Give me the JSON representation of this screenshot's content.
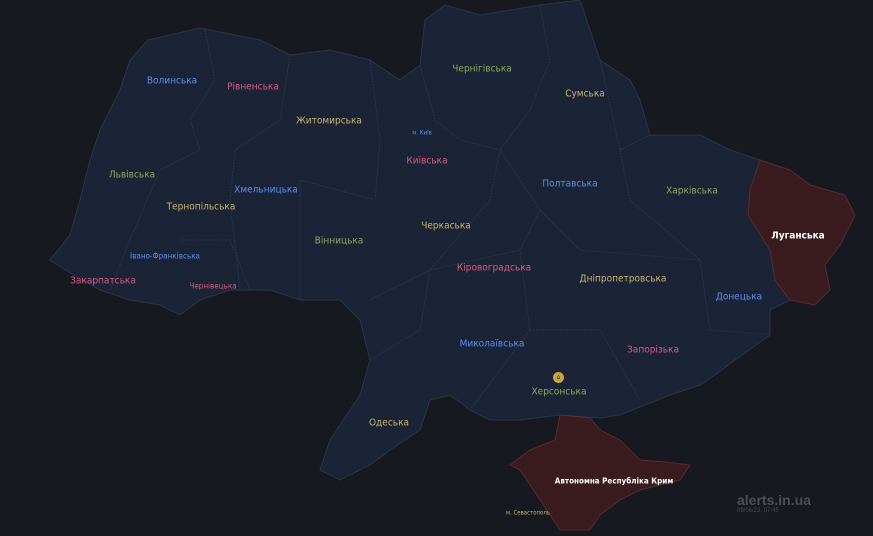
{
  "colors": {
    "background": "#16191f",
    "land": "#1b2437",
    "border": "#2c3548",
    "alert": "#3a1c20",
    "blue": "#5b8def",
    "pink": "#d65a82",
    "green": "#88a860",
    "khaki": "#c9b56a"
  },
  "regions": [
    {
      "name": "Волинська",
      "color": "blue",
      "alert": false
    },
    {
      "name": "Рівненська",
      "color": "pink",
      "alert": false
    },
    {
      "name": "Житомирська",
      "color": "khaki",
      "alert": false
    },
    {
      "name": "Чернігівська",
      "color": "green",
      "alert": false
    },
    {
      "name": "Сумська",
      "color": "khaki",
      "alert": false
    },
    {
      "name": "м. Київ",
      "color": "blue",
      "alert": false
    },
    {
      "name": "Київська",
      "color": "pink",
      "alert": false
    },
    {
      "name": "Львівська",
      "color": "green",
      "alert": false
    },
    {
      "name": "Тернопільська",
      "color": "khaki",
      "alert": false
    },
    {
      "name": "Хмельницька",
      "color": "blue",
      "alert": false
    },
    {
      "name": "Вінницька",
      "color": "green",
      "alert": false
    },
    {
      "name": "Черкаська",
      "color": "khaki",
      "alert": false
    },
    {
      "name": "Полтавська",
      "color": "blue",
      "alert": false
    },
    {
      "name": "Харківська",
      "color": "green",
      "alert": false
    },
    {
      "name": "Луганська",
      "color": "white",
      "alert": true
    },
    {
      "name": "Івано-Франківська",
      "color": "blue",
      "alert": false
    },
    {
      "name": "Закарпатська",
      "color": "pink",
      "alert": false
    },
    {
      "name": "Чернівецька",
      "color": "pink",
      "alert": false
    },
    {
      "name": "Кіровоградська",
      "color": "pink",
      "alert": false
    },
    {
      "name": "Дніпропетровська",
      "color": "khaki",
      "alert": false
    },
    {
      "name": "Донецька",
      "color": "blue",
      "alert": false
    },
    {
      "name": "Миколаївська",
      "color": "blue",
      "alert": false
    },
    {
      "name": "Запорізька",
      "color": "pink",
      "alert": false
    },
    {
      "name": "Херсонська",
      "color": "green",
      "alert": false
    },
    {
      "name": "Одеська",
      "color": "khaki",
      "alert": false
    },
    {
      "name": "Автономна Республіка Крим",
      "color": "white",
      "alert": true
    },
    {
      "name": "м. Севастополь",
      "color": "khaki",
      "alert": false
    }
  ],
  "kherson_icon": "nuclear-plant-icon",
  "watermark": {
    "site": "alerts.in.ua",
    "timestamp": "09/06/23, 07:45"
  }
}
